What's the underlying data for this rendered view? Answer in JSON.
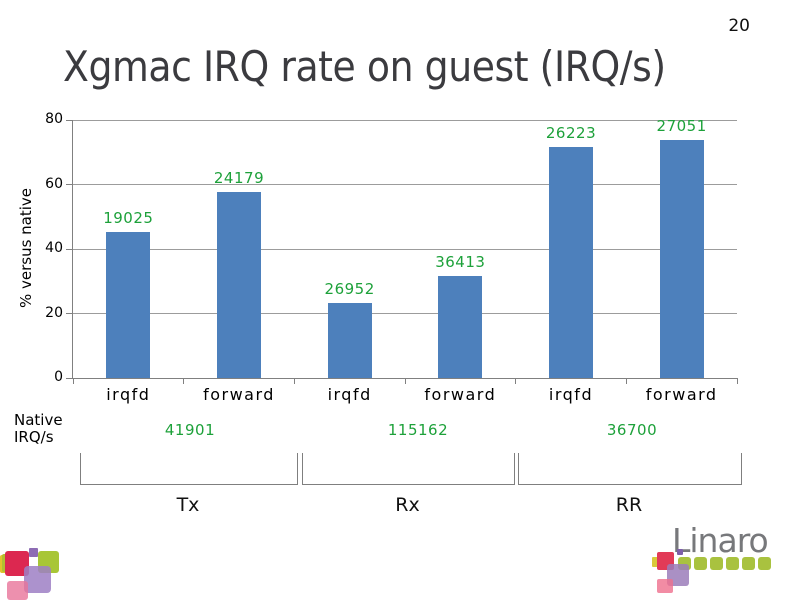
{
  "page_number": "20",
  "title": "Xgmac IRQ rate on guest (IRQ/s)",
  "chart_data": {
    "type": "bar",
    "title": "Xgmac IRQ rate on guest (IRQ/s)",
    "xlabel": "",
    "ylabel": "% versus native",
    "ylim": [
      0,
      80
    ],
    "yticks": [
      0,
      20,
      40,
      60,
      80
    ],
    "grid": true,
    "legend": "none",
    "bar_color": "#4d80bc",
    "value_label_color": "#1da13a",
    "categories": [
      "irqfd",
      "forward",
      "irqfd",
      "forward",
      "irqfd",
      "forward"
    ],
    "values_pct_of_native": [
      45.4,
      57.7,
      23.4,
      31.6,
      71.5,
      73.7
    ],
    "bar_value_labels": [
      "19025",
      "24179",
      "26952",
      "36413",
      "26223",
      "27051"
    ],
    "native_row_label_line1": "Native",
    "native_row_label_line2": "IRQ/s",
    "groups": [
      {
        "label": "Tx",
        "native_value": "41901",
        "categories": [
          "irqfd",
          "forward"
        ]
      },
      {
        "label": "Rx",
        "native_value": "115162",
        "categories": [
          "irqfd",
          "forward"
        ]
      },
      {
        "label": "RR",
        "native_value": "36700",
        "categories": [
          "irqfd",
          "forward"
        ]
      }
    ]
  },
  "footer": {
    "brand": "Linaro"
  }
}
